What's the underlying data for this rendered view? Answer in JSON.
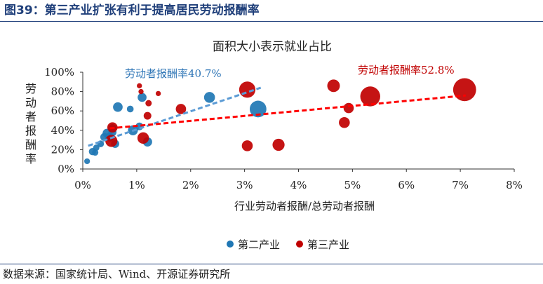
{
  "figure": {
    "title": "图39：第三产业扩张有利于提高居民劳动报酬率",
    "source": "数据来源：国家统计局、Wind、开源证券研究所"
  },
  "colors": {
    "secondary": "#1f77b4",
    "tertiary": "#c00000",
    "title": "#1f3f7a"
  },
  "chart_data": {
    "type": "scatter",
    "title": "面积大小表示就业占比",
    "xlabel": "行业劳动者报酬/总劳动者报酬",
    "ylabel": "劳动者报酬率",
    "xlim": [
      0,
      8
    ],
    "ylim": [
      0,
      100
    ],
    "x_ticks": [
      "0%",
      "1%",
      "2%",
      "3%",
      "4%",
      "5%",
      "6%",
      "7%",
      "8%"
    ],
    "y_ticks": [
      "0%",
      "20%",
      "40%",
      "60%",
      "80%",
      "100%"
    ],
    "grid": false,
    "legend_position": "bottom",
    "series": [
      {
        "name": "第二产业",
        "color": "#1f77b4",
        "points": [
          {
            "x": 0.08,
            "y": 8,
            "size": 0.25
          },
          {
            "x": 0.18,
            "y": 18,
            "size": 0.4
          },
          {
            "x": 0.23,
            "y": 17,
            "size": 0.3
          },
          {
            "x": 0.25,
            "y": 22,
            "size": 0.3
          },
          {
            "x": 0.33,
            "y": 26,
            "size": 0.35
          },
          {
            "x": 0.4,
            "y": 33,
            "size": 0.5
          },
          {
            "x": 0.45,
            "y": 37,
            "size": 0.6
          },
          {
            "x": 0.5,
            "y": 33,
            "size": 0.6
          },
          {
            "x": 0.55,
            "y": 38,
            "size": 0.5
          },
          {
            "x": 0.55,
            "y": 42,
            "size": 0.55
          },
          {
            "x": 0.6,
            "y": 26,
            "size": 0.5
          },
          {
            "x": 0.65,
            "y": 64,
            "size": 0.7
          },
          {
            "x": 0.88,
            "y": 62,
            "size": 0.35
          },
          {
            "x": 0.93,
            "y": 40,
            "size": 0.75
          },
          {
            "x": 1.05,
            "y": 44,
            "size": 0.45
          },
          {
            "x": 1.1,
            "y": 74,
            "size": 0.6
          },
          {
            "x": 1.2,
            "y": 28,
            "size": 0.65
          },
          {
            "x": 2.35,
            "y": 74,
            "size": 0.9
          },
          {
            "x": 3.25,
            "y": 62,
            "size": 2.1
          }
        ]
      },
      {
        "name": "第三产业",
        "color": "#c00000",
        "points": [
          {
            "x": 0.53,
            "y": 29,
            "size": 1.1
          },
          {
            "x": 0.55,
            "y": 43,
            "size": 0.8
          },
          {
            "x": 1.05,
            "y": 86,
            "size": 0.2
          },
          {
            "x": 1.08,
            "y": 80,
            "size": 0.2
          },
          {
            "x": 1.12,
            "y": 32,
            "size": 1.0
          },
          {
            "x": 1.2,
            "y": 55,
            "size": 0.45
          },
          {
            "x": 1.22,
            "y": 68,
            "size": 0.3
          },
          {
            "x": 1.4,
            "y": 78,
            "size": 0.2
          },
          {
            "x": 1.82,
            "y": 62,
            "size": 0.8
          },
          {
            "x": 3.05,
            "y": 82,
            "size": 2.0
          },
          {
            "x": 3.05,
            "y": 24,
            "size": 0.9
          },
          {
            "x": 3.63,
            "y": 25,
            "size": 1.1
          },
          {
            "x": 4.65,
            "y": 86,
            "size": 1.2
          },
          {
            "x": 4.85,
            "y": 48,
            "size": 0.9
          },
          {
            "x": 4.93,
            "y": 63,
            "size": 0.8
          },
          {
            "x": 5.33,
            "y": 75,
            "size": 3.0
          },
          {
            "x": 7.08,
            "y": 82,
            "size": 4.0
          }
        ]
      }
    ],
    "trendlines": [
      {
        "series": "第二产业",
        "label": "劳动者报酬率40.7%",
        "x": [
          0.1,
          3.3
        ],
        "y": [
          24,
          84
        ],
        "color": "#5b9bd5"
      },
      {
        "series": "第三产业",
        "label": "劳动者报酬率52.8%",
        "x": [
          0.5,
          7.1
        ],
        "y": [
          42,
          76
        ],
        "color": "#ff0000"
      }
    ]
  }
}
